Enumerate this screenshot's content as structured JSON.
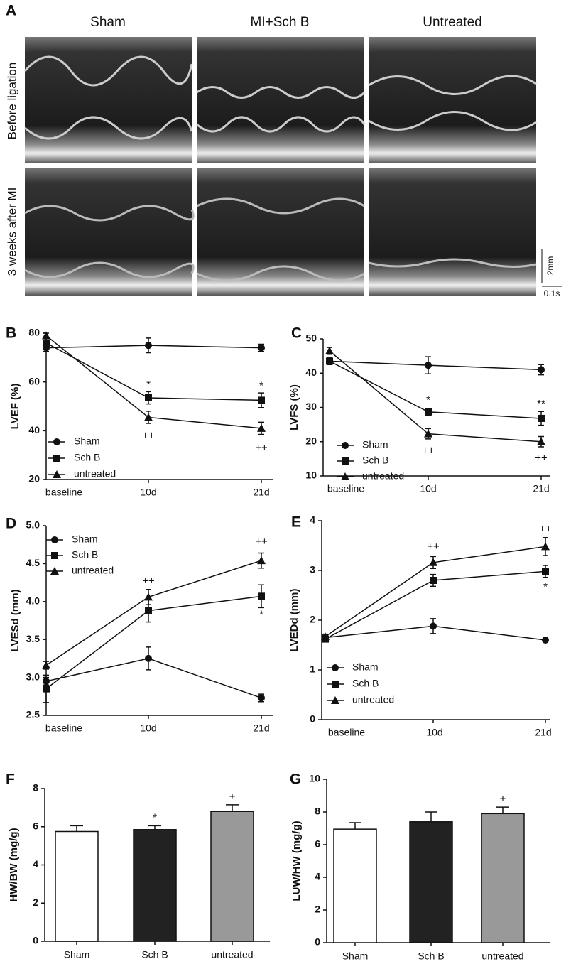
{
  "panel_a": {
    "label": "A",
    "columns": [
      "Sham",
      "MI+Sch B",
      "Untreated"
    ],
    "rows": [
      "Before  ligation",
      "3 weeks after MI"
    ],
    "scale": {
      "vertical": "2mm",
      "horizontal": "0.1s"
    }
  },
  "chart_data": [
    {
      "type": "line",
      "label": "B",
      "y_label": "LVEF (%)",
      "categories": [
        "baseline",
        "10d",
        "21d"
      ],
      "series": [
        {
          "name": "Sham",
          "color": "#111111",
          "marker": "circle",
          "values": [
            74,
            75,
            74
          ],
          "errors": [
            1.5,
            3,
            1.5
          ]
        },
        {
          "name": "Sch B",
          "color": "#111111",
          "marker": "square",
          "values": [
            76,
            53.5,
            52.5
          ],
          "errors": [
            2,
            2.5,
            3
          ]
        },
        {
          "name": "untreated",
          "color": "#111111",
          "marker": "triangle",
          "values": [
            79,
            45.5,
            41
          ],
          "errors": [
            1,
            2.5,
            2.5
          ]
        }
      ],
      "ylim": [
        20,
        80
      ],
      "yticks": [
        20,
        40,
        60,
        80
      ],
      "annotations": [
        {
          "text": "*",
          "category": "10d",
          "series": "Sch B"
        },
        {
          "text": "*",
          "category": "21d",
          "series": "Sch B"
        },
        {
          "text": "++",
          "category": "10d",
          "series": "untreated"
        },
        {
          "text": "++",
          "category": "21d",
          "series": "untreated"
        }
      ]
    },
    {
      "type": "line",
      "label": "C",
      "y_label": "LVFS (%)",
      "categories": [
        "baseline",
        "10d",
        "21d"
      ],
      "series": [
        {
          "name": "Sham",
          "color": "#111111",
          "marker": "circle",
          "values": [
            43.5,
            42.3,
            41
          ],
          "errors": [
            1,
            2.5,
            1.5
          ]
        },
        {
          "name": "Sch B",
          "color": "#111111",
          "marker": "square",
          "values": [
            43.5,
            28.7,
            26.8
          ],
          "errors": [
            1,
            1,
            2
          ]
        },
        {
          "name": "untreated",
          "color": "#111111",
          "marker": "triangle",
          "values": [
            46.5,
            22.3,
            20
          ],
          "errors": [
            1,
            1.5,
            1.5
          ]
        }
      ],
      "ylim": [
        10,
        50
      ],
      "yticks": [
        10,
        20,
        30,
        40,
        50
      ],
      "annotations": [
        {
          "text": "*",
          "category": "10d",
          "series": "Sch B"
        },
        {
          "text": "**",
          "category": "21d",
          "series": "Sch B"
        },
        {
          "text": "++",
          "category": "10d",
          "series": "untreated"
        },
        {
          "text": "++",
          "category": "21d",
          "series": "untreated"
        }
      ]
    },
    {
      "type": "line",
      "label": "D",
      "y_label": "LVESd (mm)",
      "categories": [
        "baseline",
        "10d",
        "21d"
      ],
      "series": [
        {
          "name": "Sham",
          "color": "#111111",
          "marker": "circle",
          "values": [
            2.95,
            3.25,
            2.73
          ],
          "errors": [
            0.05,
            0.15,
            0.05
          ]
        },
        {
          "name": "Sch B",
          "color": "#111111",
          "marker": "square",
          "values": [
            2.85,
            3.88,
            4.07
          ],
          "errors": [
            0.18,
            0.15,
            0.15
          ]
        },
        {
          "name": "untreated",
          "color": "#111111",
          "marker": "triangle",
          "values": [
            3.16,
            4.06,
            4.54
          ],
          "errors": [
            0.05,
            0.1,
            0.1
          ]
        }
      ],
      "ylim": [
        2.5,
        5
      ],
      "yticks": [
        2.5,
        {
          "value": 3,
          "label": "3.0"
        },
        3.5,
        {
          "value": 4,
          "label": "4.0"
        },
        4.5,
        {
          "value": 5,
          "label": "5.0"
        }
      ],
      "annotations": [
        {
          "text": "++",
          "category": "10d",
          "series": "untreated"
        },
        {
          "text": "++",
          "category": "21d",
          "series": "untreated"
        },
        {
          "text": "*",
          "category": "21d",
          "series": "Sch B"
        }
      ]
    },
    {
      "type": "line",
      "label": "E",
      "y_label": "LVEDd (mm)",
      "categories": [
        "baseline",
        "10d",
        "21d"
      ],
      "series": [
        {
          "name": "Sham",
          "color": "#111111",
          "marker": "circle",
          "values": [
            1.65,
            1.88,
            1.6
          ],
          "errors": [
            0.05,
            0.15,
            0.03
          ]
        },
        {
          "name": "Sch B",
          "color": "#111111",
          "marker": "square",
          "values": [
            1.62,
            2.8,
            2.98
          ],
          "errors": [
            0.05,
            0.12,
            0.12
          ]
        },
        {
          "name": "untreated",
          "color": "#111111",
          "marker": "triangle",
          "values": [
            1.67,
            3.16,
            3.48
          ],
          "errors": [
            0.05,
            0.12,
            0.18
          ]
        }
      ],
      "ylim": [
        0,
        4
      ],
      "yticks": [
        0,
        1,
        2,
        3,
        4
      ],
      "annotations": [
        {
          "text": "++",
          "category": "10d",
          "series": "untreated"
        },
        {
          "text": "++",
          "category": "21d",
          "series": "untreated"
        },
        {
          "text": "*",
          "category": "21d",
          "series": "Sch B"
        }
      ]
    },
    {
      "type": "bar",
      "label": "F",
      "y_label": "HW/BW (mg/g)",
      "categories": [
        "Sham",
        "Sch B",
        "untreated"
      ],
      "values": [
        5.75,
        5.85,
        6.8
      ],
      "errors": [
        0.3,
        0.2,
        0.35
      ],
      "colors": [
        "#ffffff",
        "#222222",
        "#999999"
      ],
      "ylim": [
        0,
        8
      ],
      "yticks": [
        0,
        2,
        4,
        6,
        8
      ],
      "annotations": [
        {
          "text": "*",
          "category": "Sch B"
        },
        {
          "text": "+",
          "category": "untreated"
        }
      ]
    },
    {
      "type": "bar",
      "label": "G",
      "y_label": "LUW/HW (mg/g)",
      "categories": [
        "Sham",
        "Sch B",
        "untreated"
      ],
      "values": [
        6.95,
        7.4,
        7.9
      ],
      "errors": [
        0.4,
        0.6,
        0.4
      ],
      "colors": [
        "#ffffff",
        "#222222",
        "#999999"
      ],
      "ylim": [
        0,
        10
      ],
      "yticks": [
        0,
        2,
        4,
        6,
        8,
        10
      ],
      "annotations": [
        {
          "text": "+",
          "category": "untreated"
        }
      ]
    }
  ]
}
